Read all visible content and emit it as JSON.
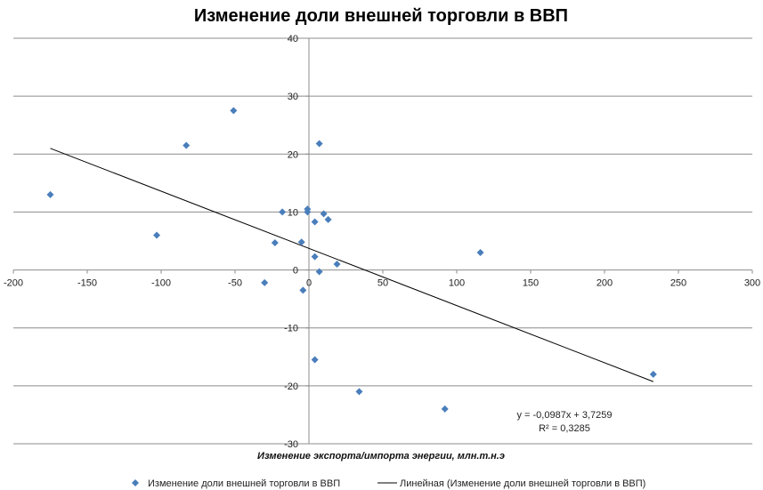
{
  "chart_data": {
    "type": "scatter",
    "title": "Изменение доли внешней торговли в ВВП",
    "xlabel": "Изменение экспорта/импорта энергии, млн.т.н.э",
    "ylabel": "",
    "xlim": [
      -200,
      300
    ],
    "ylim": [
      -30,
      40
    ],
    "x_ticks": [
      -200,
      -150,
      -100,
      -50,
      0,
      50,
      100,
      150,
      200,
      250,
      300
    ],
    "y_ticks": [
      -30,
      -20,
      -10,
      0,
      10,
      20,
      30,
      40
    ],
    "grid": "horizontal",
    "legend_position": "bottom",
    "series": [
      {
        "name": "Изменение доли внешней торговли в ВВП",
        "color": "#4a7ebb",
        "marker": "diamond",
        "points": [
          {
            "x": -175,
            "y": 13
          },
          {
            "x": -103,
            "y": 6
          },
          {
            "x": -83,
            "y": 21.5
          },
          {
            "x": -51,
            "y": 27.5
          },
          {
            "x": -30,
            "y": -2.2
          },
          {
            "x": -23,
            "y": 4.7
          },
          {
            "x": -18,
            "y": 10
          },
          {
            "x": -5,
            "y": 4.8
          },
          {
            "x": -4,
            "y": -3.5
          },
          {
            "x": -1,
            "y": 10
          },
          {
            "x": -1,
            "y": 10.5
          },
          {
            "x": 4,
            "y": 8.3
          },
          {
            "x": 4,
            "y": 2.3
          },
          {
            "x": 4,
            "y": -15.5
          },
          {
            "x": 7,
            "y": 21.8
          },
          {
            "x": 7,
            "y": -0.3
          },
          {
            "x": 10,
            "y": 9.7
          },
          {
            "x": 13,
            "y": 8.7
          },
          {
            "x": 19,
            "y": 1
          },
          {
            "x": 34,
            "y": -21
          },
          {
            "x": 92,
            "y": -24
          },
          {
            "x": 116,
            "y": 3
          },
          {
            "x": 233,
            "y": -18
          }
        ]
      }
    ],
    "trendline": {
      "name": "Линейная (Изменение доли внешней торговли в ВВП)",
      "color": "#000000",
      "slope": -0.0987,
      "intercept": 3.7259,
      "x_start": -175,
      "x_end": 233,
      "equation": "y = -0,0987x + 3,7259",
      "r_squared": "R² = 0,3285"
    }
  }
}
